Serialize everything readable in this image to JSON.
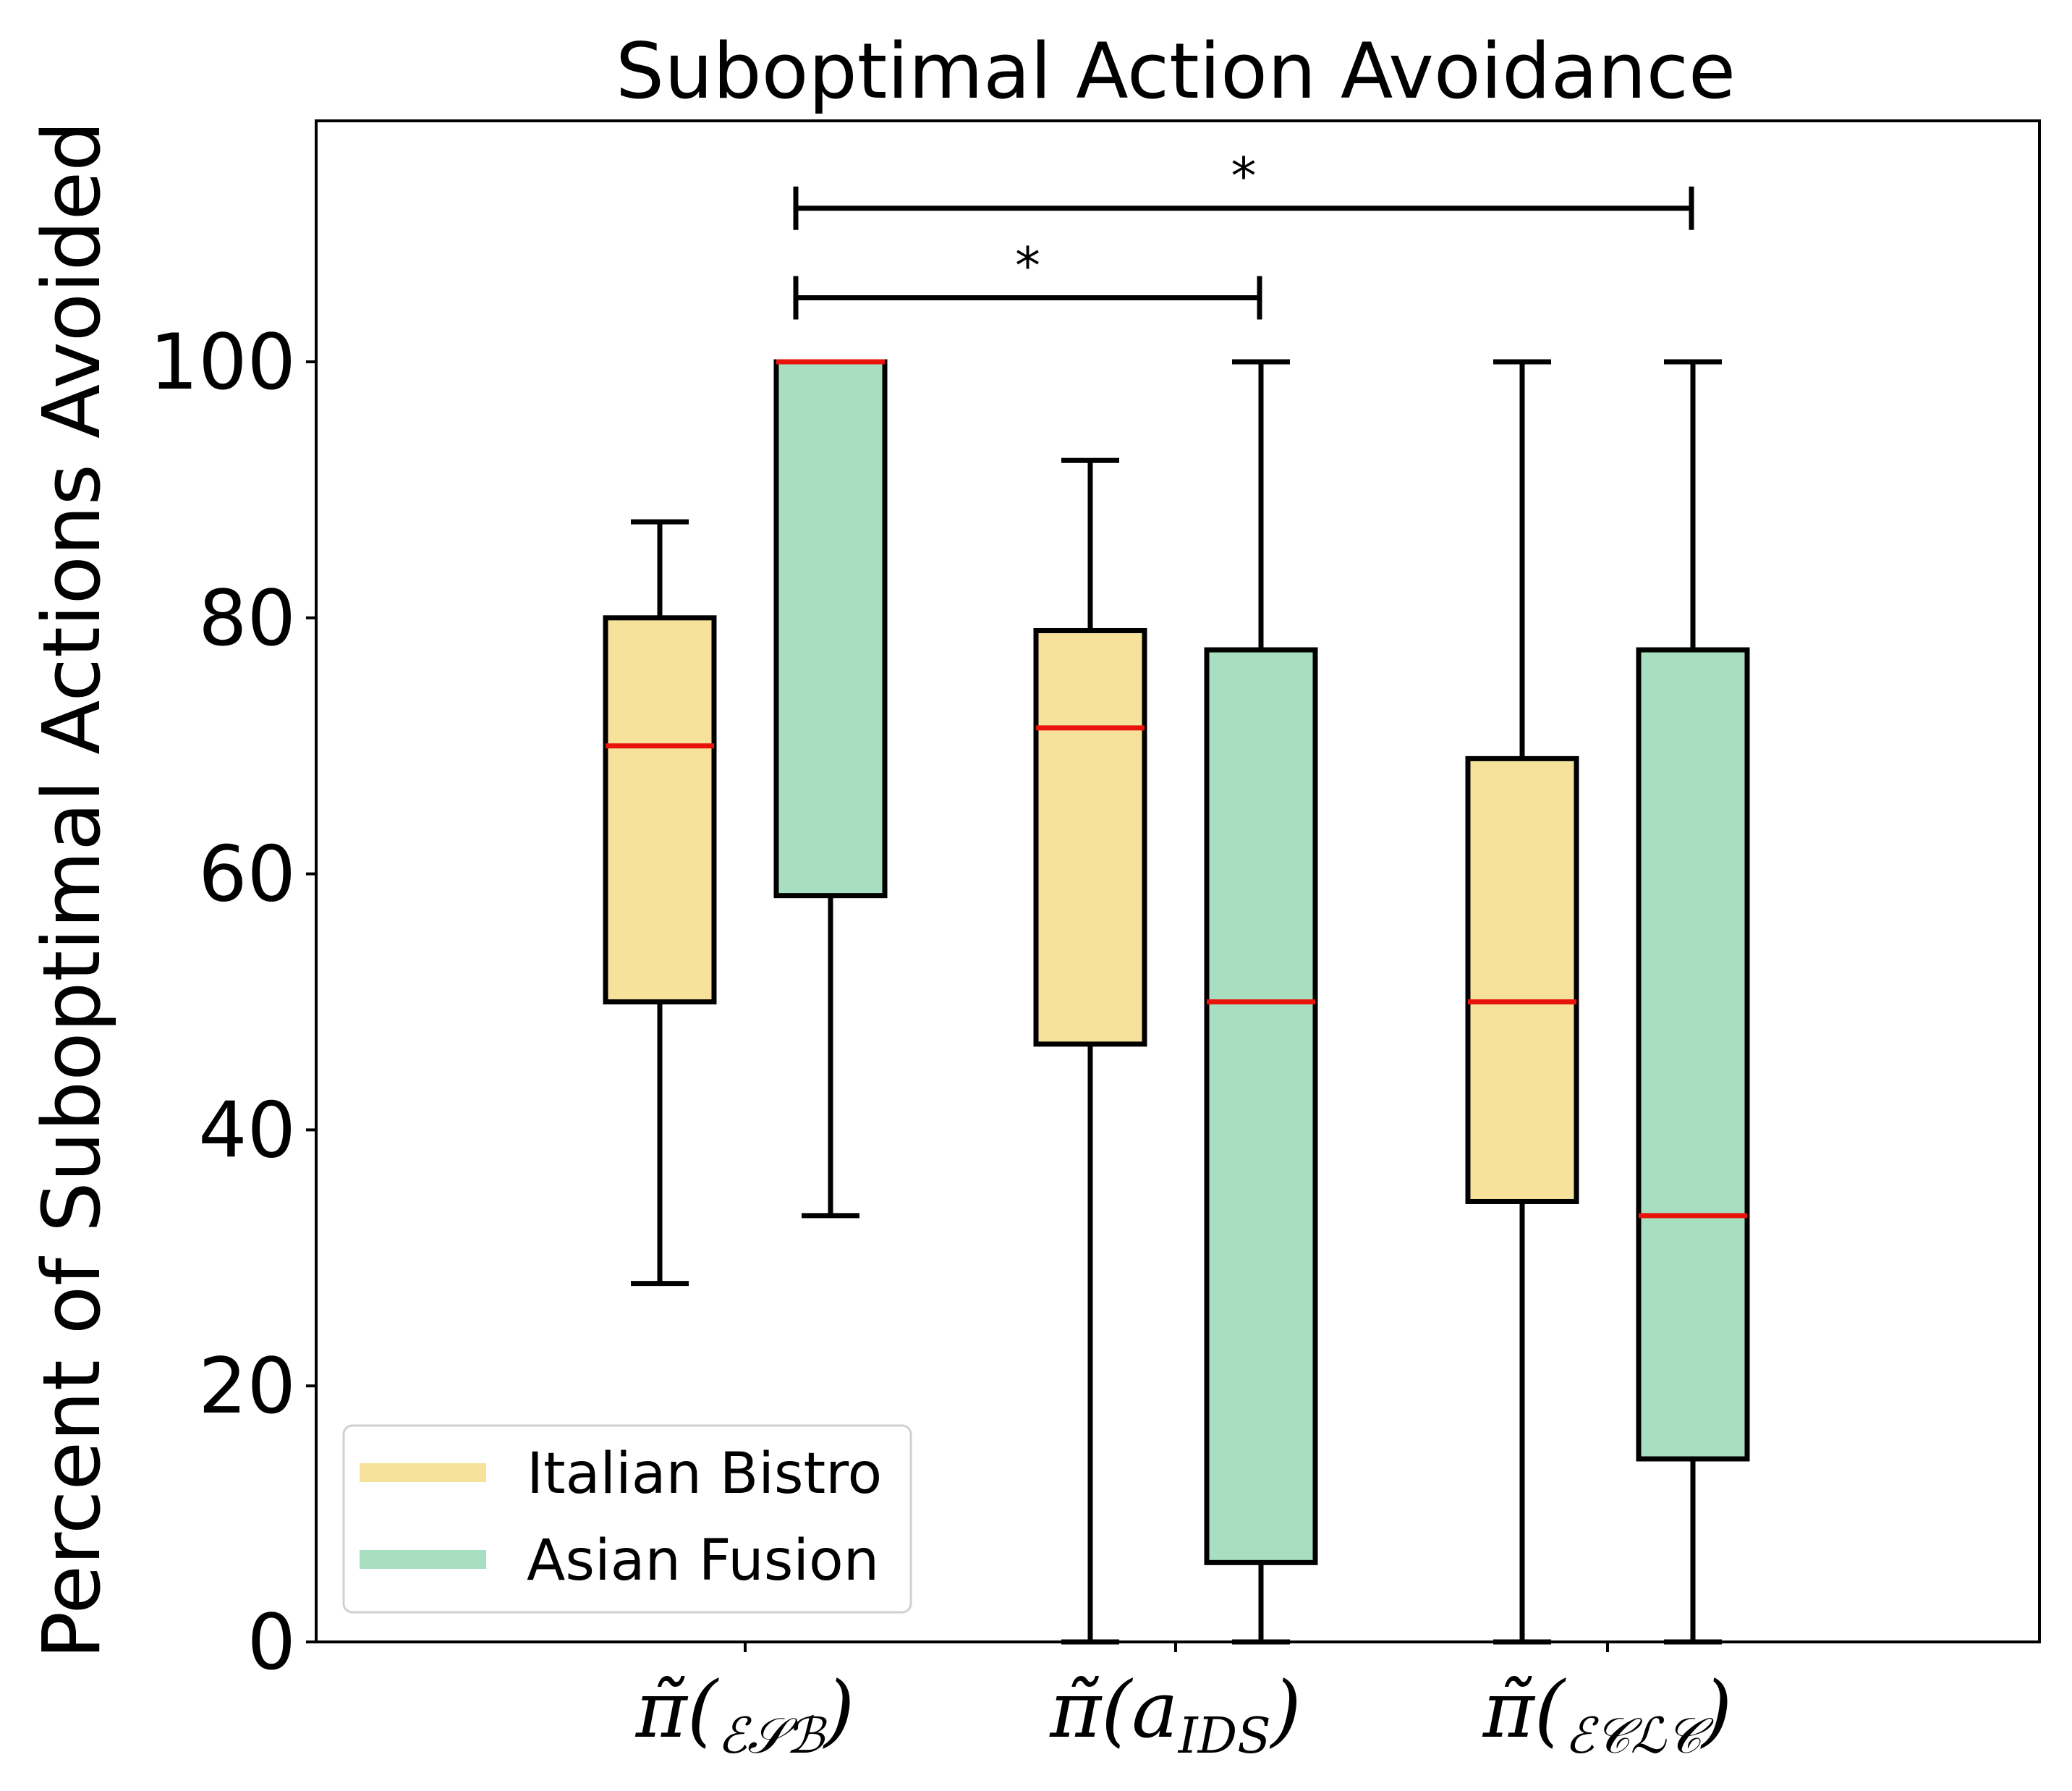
{
  "chart_data": {
    "type": "box",
    "title": "Suboptimal Action Avoidance",
    "ylabel": "Percent of Suboptimal Actions Avoided",
    "xlabel": "",
    "ylim": [
      0,
      119
    ],
    "yticks": [
      "0",
      "20",
      "40",
      "60",
      "80",
      "100"
    ],
    "categories": [
      {
        "main": "π̃(",
        "sub": "ℰ𝒮ℬ",
        "close": ")"
      },
      {
        "main": "π̃(a",
        "sub": "IDS",
        "close": ")"
      },
      {
        "main": "π̃(",
        "sub": "ℰ𝒞ℒ𝒞",
        "close": ")"
      }
    ],
    "series": [
      {
        "name": "Italian Bistro",
        "color": "#f7e29c",
        "boxes": [
          {
            "whisker_low": 28,
            "q1": 50,
            "median": 70,
            "q3": 80,
            "whisker_high": 87.5
          },
          {
            "whisker_low": 0,
            "q1": 46.7,
            "median": 71.4,
            "q3": 79,
            "whisker_high": 92.3
          },
          {
            "whisker_low": 0,
            "q1": 34.4,
            "median": 50,
            "q3": 69,
            "whisker_high": 100
          }
        ]
      },
      {
        "name": "Asian Fusion",
        "color": "#a8dfc0",
        "boxes": [
          {
            "whisker_low": 33.3,
            "q1": 58.3,
            "median": 100,
            "q3": 100,
            "whisker_high": 100
          },
          {
            "whisker_low": 0,
            "q1": 6.2,
            "median": 50,
            "q3": 77.5,
            "whisker_high": 100
          },
          {
            "whisker_low": 0,
            "q1": 14.3,
            "median": 33.3,
            "q3": 77.5,
            "whisker_high": 100
          }
        ]
      }
    ],
    "median_color": "#e8140c",
    "significance": [
      {
        "label": "*",
        "from_box": "Asian Fusion 1",
        "to_box": "Asian Fusion 2",
        "level": 105
      },
      {
        "label": "*",
        "from_box": "Asian Fusion 1",
        "to_box": "Asian Fusion 3",
        "level": 112
      }
    ],
    "legend_position": "lower-left",
    "legend": [
      "Italian Bistro",
      "Asian Fusion"
    ]
  }
}
